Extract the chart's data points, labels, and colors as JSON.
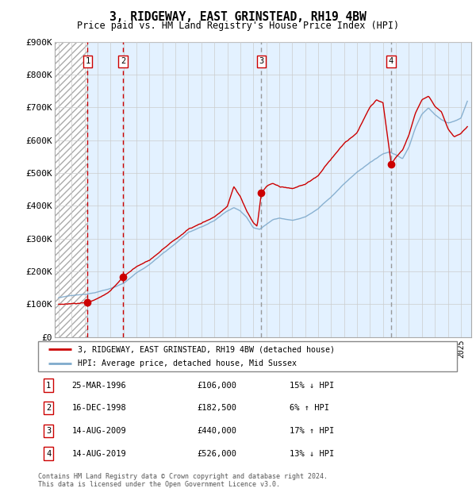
{
  "title": "3, RIDGEWAY, EAST GRINSTEAD, RH19 4BW",
  "subtitle": "Price paid vs. HM Land Registry's House Price Index (HPI)",
  "ylim": [
    0,
    900000
  ],
  "yticks": [
    0,
    100000,
    200000,
    300000,
    400000,
    500000,
    600000,
    700000,
    800000,
    900000
  ],
  "ytick_labels": [
    "£0",
    "£100K",
    "£200K",
    "£300K",
    "£400K",
    "£500K",
    "£600K",
    "£700K",
    "£800K",
    "£900K"
  ],
  "xlim_start": 1993.7,
  "xlim_end": 2025.8,
  "transactions": [
    {
      "date": 1996.23,
      "price": 106000,
      "label": "1"
    },
    {
      "date": 1998.96,
      "price": 182500,
      "label": "2"
    },
    {
      "date": 2009.62,
      "price": 440000,
      "label": "3"
    },
    {
      "date": 2019.62,
      "price": 526000,
      "label": "4"
    }
  ],
  "transaction_color": "#cc0000",
  "hpi_color": "#7faacc",
  "vline_color_red": "#cc0000",
  "vline_color_gray": "#999999",
  "shade_color": "#ddeeff",
  "grid_color": "#cccccc",
  "table_rows": [
    {
      "num": "1",
      "date": "25-MAR-1996",
      "price": "£106,000",
      "hpi": "15% ↓ HPI"
    },
    {
      "num": "2",
      "date": "16-DEC-1998",
      "price": "£182,500",
      "hpi": "6% ↑ HPI"
    },
    {
      "num": "3",
      "date": "14-AUG-2009",
      "price": "£440,000",
      "hpi": "17% ↑ HPI"
    },
    {
      "num": "4",
      "date": "14-AUG-2019",
      "price": "£526,000",
      "hpi": "13% ↓ HPI"
    }
  ],
  "legend_line1": "3, RIDGEWAY, EAST GRINSTEAD, RH19 4BW (detached house)",
  "legend_line2": "HPI: Average price, detached house, Mid Sussex",
  "footer": "Contains HM Land Registry data © Crown copyright and database right 2024.\nThis data is licensed under the Open Government Licence v3.0."
}
